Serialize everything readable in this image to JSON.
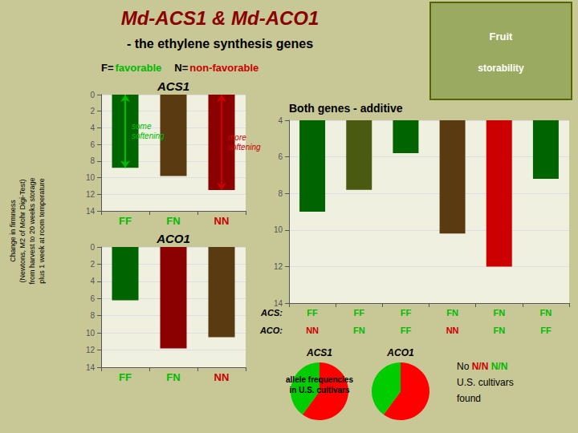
{
  "title": "Md-ACS1 & Md-ACO1",
  "title_color": "#8b0000",
  "subtitle": "- the ethylene synthesis genes",
  "background": "#c8c896",
  "ylabel": "Change in firmness\n(Newtons, M2 of Mohr Digi-Test)\nfrom harvest to 20 weeks storage\nplus 1 week at room temperature",
  "key": [
    {
      "letter": "F=",
      "meaning": "favorable",
      "color": "#00bb00"
    },
    {
      "letter": "N=",
      "meaning": "non-favorable",
      "color": "#cc0000"
    }
  ],
  "image_placeholder": {
    "texts": [
      "Fruit",
      "storability"
    ],
    "color": "#ffffff",
    "fill": "#9aaa60",
    "border": "#556600"
  },
  "pie_note": "allele frequencies\nin U.S. cultivars",
  "note": [
    [
      {
        "text": "No "
      },
      {
        "text": "N/N",
        "color": "#cc0000"
      },
      {
        "text": " N/N",
        "color": "#00bb00"
      }
    ],
    [
      {
        "text": "U.S. cultivars"
      }
    ],
    [
      {
        "text": "found"
      }
    ]
  ],
  "chart_data": [
    {
      "type": "bar",
      "title": "ACS1",
      "categories": [
        "FF",
        "FN",
        "NN"
      ],
      "category_colors": [
        "#00bb00",
        "#00bb00",
        "#cc0000"
      ],
      "values": [
        8.8,
        9.8,
        11.5
      ],
      "colors": [
        "#006400",
        "#5a3a10",
        "#8b0000"
      ],
      "ylim": [
        14,
        0
      ],
      "yticks": [
        0,
        2,
        4,
        6,
        8,
        10,
        12,
        14
      ],
      "grid": true,
      "plot_background": "#f0f0e0",
      "annotations": [
        {
          "text": "some\nsoftening",
          "color": "#00bb00",
          "category": "FF"
        },
        {
          "text": "more\nsoftening",
          "color": "#cc0000",
          "category": "NN"
        }
      ]
    },
    {
      "type": "bar",
      "title": "ACO1",
      "categories": [
        "FF",
        "FN",
        "NN"
      ],
      "category_colors": [
        "#00bb00",
        "#00bb00",
        "#cc0000"
      ],
      "values": [
        6.2,
        11.8,
        10.5
      ],
      "colors": [
        "#006400",
        "#8b0000",
        "#5a3a10"
      ],
      "ylim": [
        14,
        0
      ],
      "yticks": [
        0,
        2,
        4,
        6,
        8,
        10,
        12,
        14
      ],
      "grid": true,
      "plot_background": "#f0f0e0"
    },
    {
      "type": "bar",
      "title": "Both genes - additive",
      "label_rows": [
        {
          "name": "ACS:",
          "labels": [
            "FF",
            "FF",
            "FF",
            "FN",
            "FN",
            "FN"
          ],
          "colors": [
            "#00bb00",
            "#00bb00",
            "#00bb00",
            "#00bb00",
            "#00bb00",
            "#00bb00"
          ]
        },
        {
          "name": "ACO:",
          "labels": [
            "NN",
            "FN",
            "FF",
            "NN",
            "FN",
            "FF"
          ],
          "colors": [
            "#cc0000",
            "#00bb00",
            "#00bb00",
            "#cc0000",
            "#00bb00",
            "#00bb00"
          ]
        }
      ],
      "values": [
        9.0,
        7.8,
        5.8,
        10.2,
        12.0,
        7.2
      ],
      "colors": [
        "#006400",
        "#4a5a10",
        "#006400",
        "#5a3a10",
        "#cc0000",
        "#006400"
      ],
      "ylim": [
        14,
        4
      ],
      "yticks": [
        4,
        6,
        8,
        10,
        12,
        14
      ],
      "grid": true,
      "plot_background": "#f0f0e0"
    },
    {
      "type": "pie",
      "title": "ACS1",
      "values": [
        0.6,
        0.4
      ],
      "colors": [
        "#ff0000",
        "#00cc00"
      ]
    },
    {
      "type": "pie",
      "title": "ACO1",
      "values": [
        0.6,
        0.4
      ],
      "colors": [
        "#ff0000",
        "#00cc00"
      ]
    }
  ]
}
